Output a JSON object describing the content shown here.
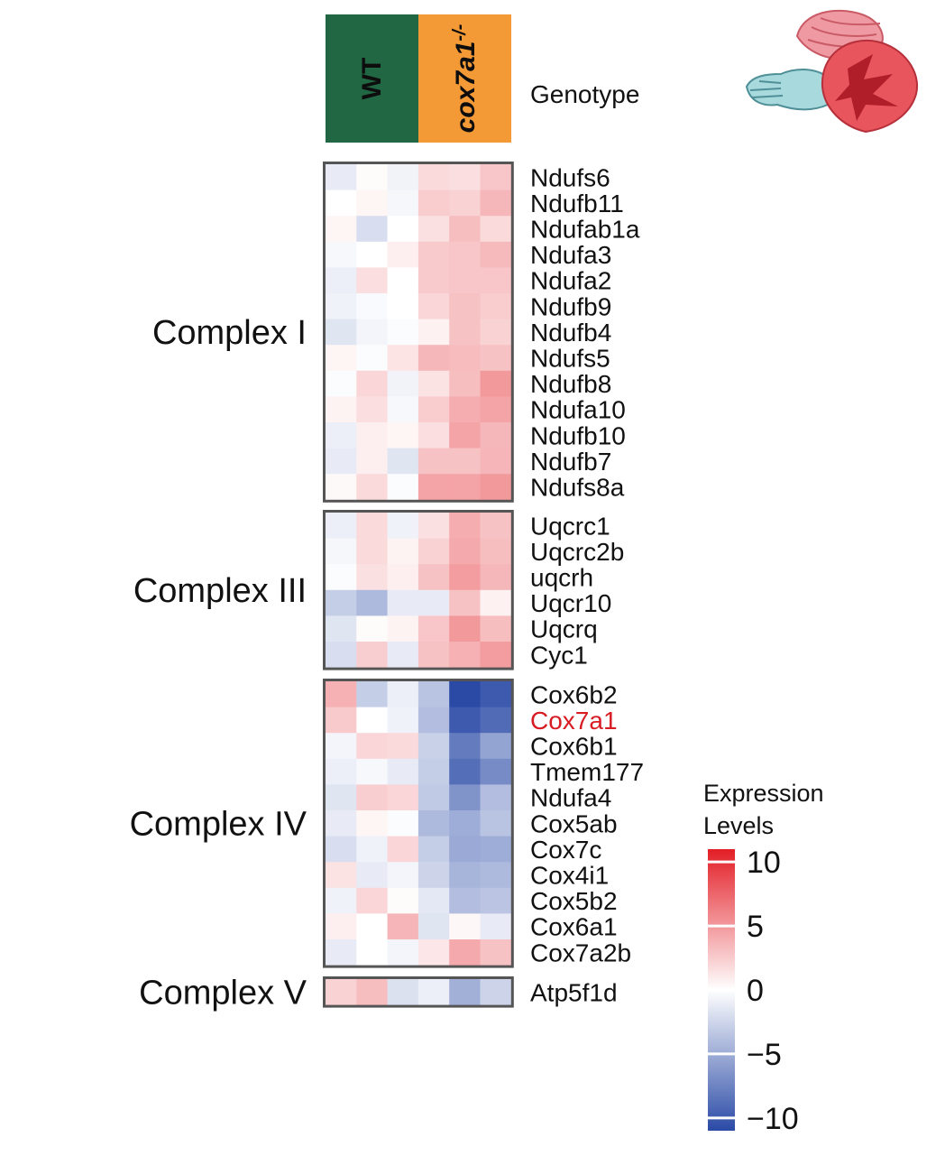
{
  "chart_data": {
    "type": "heatmap",
    "genotype_track": {
      "label": "Genotype",
      "groups": [
        {
          "name": "WT",
          "color": "#226744",
          "columns": 3
        },
        {
          "name": "cox7a1",
          "superscript": "-/-",
          "color": "#f39a37",
          "columns": 3
        }
      ]
    },
    "columns": 6,
    "blocks": [
      {
        "label": "Complex I",
        "rows": [
          {
            "gene": "Ndufs6",
            "values": [
              -1.2,
              0.2,
              -0.7,
              1.8,
              1.6,
              2.8
            ]
          },
          {
            "gene": "Ndufb11",
            "values": [
              0.0,
              0.5,
              -0.5,
              2.5,
              2.2,
              3.5
            ]
          },
          {
            "gene": "Ndufab1a",
            "values": [
              0.5,
              -2.0,
              0.0,
              1.5,
              3.2,
              1.8
            ]
          },
          {
            "gene": "Ndufa3",
            "values": [
              -0.4,
              0.0,
              0.8,
              2.6,
              2.8,
              3.4
            ]
          },
          {
            "gene": "Ndufa2",
            "values": [
              -1.0,
              1.6,
              0.0,
              2.6,
              2.8,
              2.8
            ]
          },
          {
            "gene": "Ndufb9",
            "values": [
              -0.8,
              -0.3,
              0.0,
              2.0,
              3.0,
              2.5
            ]
          },
          {
            "gene": "Ndufb4",
            "values": [
              -1.6,
              -0.6,
              -0.2,
              0.7,
              3.0,
              2.2
            ]
          },
          {
            "gene": "Ndufs5",
            "values": [
              0.5,
              -0.2,
              1.3,
              3.5,
              3.3,
              3.0
            ]
          },
          {
            "gene": "Ndufb8",
            "values": [
              -0.2,
              2.0,
              -0.7,
              1.4,
              3.2,
              5.0
            ]
          },
          {
            "gene": "Ndufa10",
            "values": [
              0.6,
              1.6,
              -0.4,
              2.5,
              4.0,
              4.5
            ]
          },
          {
            "gene": "Ndufb10",
            "values": [
              -1.0,
              0.8,
              0.5,
              1.6,
              4.5,
              3.5
            ]
          },
          {
            "gene": "Ndufb7",
            "values": [
              -1.2,
              0.8,
              -1.6,
              3.0,
              3.0,
              3.6
            ]
          },
          {
            "gene": "Ndufs8a",
            "values": [
              0.3,
              1.8,
              -0.2,
              4.5,
              4.5,
              5.0
            ]
          }
        ]
      },
      {
        "label": "Complex III",
        "rows": [
          {
            "gene": "Uqcrc1",
            "values": [
              -1.0,
              1.8,
              -0.8,
              1.5,
              4.0,
              3.0
            ]
          },
          {
            "gene": "Uqcrc2b",
            "values": [
              -0.5,
              1.8,
              0.6,
              2.2,
              4.2,
              3.2
            ]
          },
          {
            "gene": "uqcrh",
            "values": [
              -0.2,
              1.5,
              0.8,
              3.0,
              4.8,
              3.5
            ]
          },
          {
            "gene": "Uqcr10",
            "values": [
              -3.0,
              -4.2,
              -1.2,
              -1.2,
              3.0,
              0.7
            ]
          },
          {
            "gene": "Uqcrq",
            "values": [
              -1.6,
              0.2,
              0.6,
              2.8,
              5.0,
              3.2
            ]
          },
          {
            "gene": "Cyc1",
            "values": [
              -2.0,
              2.4,
              -1.2,
              3.0,
              3.8,
              4.8
            ]
          }
        ]
      },
      {
        "label": "Complex IV",
        "rows": [
          {
            "gene": "Cox6b2",
            "values": [
              3.8,
              -3.0,
              -1.0,
              -3.6,
              -11.0,
              -10.0
            ]
          },
          {
            "gene": "Cox7a1",
            "values": [
              2.6,
              0.0,
              -0.8,
              -4.0,
              -10.0,
              -9.0
            ]
          },
          {
            "gene": "Cox6b1",
            "values": [
              -0.6,
              2.0,
              1.8,
              -2.8,
              -8.0,
              -5.6
            ]
          },
          {
            "gene": "Tmem177",
            "values": [
              -1.0,
              -0.4,
              -1.2,
              -3.0,
              -8.8,
              -7.0
            ]
          },
          {
            "gene": "Ndufa4",
            "values": [
              -1.6,
              2.4,
              2.0,
              -3.2,
              -6.5,
              -4.0
            ]
          },
          {
            "gene": "Cox5ab",
            "values": [
              -1.2,
              0.5,
              -0.2,
              -4.2,
              -5.0,
              -3.6
            ]
          },
          {
            "gene": "Cox7c",
            "values": [
              -2.0,
              -0.8,
              2.0,
              -3.0,
              -5.2,
              -5.0
            ]
          },
          {
            "gene": "Cox4i1",
            "values": [
              1.4,
              -1.2,
              -0.6,
              -2.6,
              -4.5,
              -4.2
            ]
          },
          {
            "gene": "Cox5b2",
            "values": [
              -0.8,
              2.0,
              0.2,
              -1.4,
              -4.0,
              -3.5
            ]
          },
          {
            "gene": "Cox6a1",
            "values": [
              0.8,
              0.0,
              3.6,
              -1.6,
              0.4,
              -1.2
            ]
          },
          {
            "gene": "Cox7a2b",
            "values": [
              -1.2,
              0.0,
              -0.6,
              1.2,
              4.2,
              3.0
            ]
          }
        ]
      },
      {
        "label": "Complex V",
        "rows": [
          {
            "gene": "Atp5f1d",
            "values": [
              2.2,
              3.2,
              -1.8,
              -1.0,
              -4.8,
              -2.6
            ]
          }
        ]
      }
    ],
    "highlight_gene": "Cox7a1",
    "highlight_color": "#d81c24",
    "legend": {
      "title_line1": "Expression",
      "title_line2": "Levels",
      "range": [
        -11,
        11
      ],
      "ticks": [
        10,
        5,
        0,
        -5,
        -10
      ],
      "tick_labels": [
        "10",
        "5",
        "0",
        "−5",
        "−10"
      ],
      "colors": {
        "low": "#2a4aa6",
        "mid": "#ffffff",
        "high": "#e31e26"
      }
    },
    "icon": "zebrafish-heart-icon"
  }
}
